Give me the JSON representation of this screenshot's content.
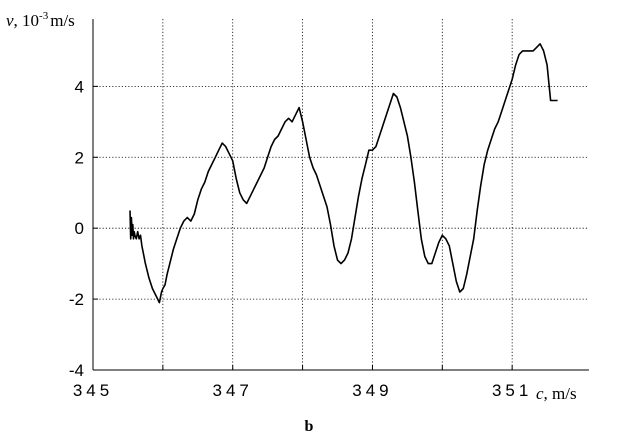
{
  "chart_data": {
    "type": "line",
    "xlabel": "c,  m/s",
    "ylabel": "v,  10-3 m/s",
    "ylabel_parts": {
      "symbol": "v",
      "sep": ", ",
      "base": "10",
      "exp": "-3",
      "unit": "m/s"
    },
    "xlabel_parts": {
      "symbol": "c",
      "unit": ", m/s"
    },
    "xlim": [
      345,
      352.1
    ],
    "ylim": [
      -4,
      5.9
    ],
    "x_ticks": [
      345,
      347,
      349,
      351
    ],
    "x_tick_labels": [
      "345",
      "347",
      "349",
      "351"
    ],
    "x_gridlines": [
      346,
      347,
      348,
      349,
      350,
      351
    ],
    "y_ticks": [
      -4,
      -2,
      0,
      2,
      4
    ],
    "y_tick_labels": [
      "-4",
      "-2",
      "0",
      "2",
      "4"
    ],
    "grid": "dotted",
    "color": "#000000",
    "series": [
      {
        "x": [
          345.53,
          345.54,
          345.55,
          345.56,
          345.57,
          345.58,
          345.59,
          345.6,
          345.62,
          345.64,
          345.66,
          345.68,
          345.7,
          345.75,
          345.8,
          345.85,
          345.9,
          345.95,
          345.98,
          346.0,
          346.03,
          346.06,
          346.1,
          346.15,
          346.2,
          346.25,
          346.3,
          346.35,
          346.4,
          346.45,
          346.5,
          346.55,
          346.6,
          346.65,
          346.7,
          346.75,
          346.8,
          346.85,
          346.9,
          346.95,
          347.0,
          347.05,
          347.1,
          347.15,
          347.2,
          347.25,
          347.3,
          347.35,
          347.4,
          347.45,
          347.5,
          347.55,
          347.6,
          347.65,
          347.7,
          347.75,
          347.8,
          347.85,
          347.9,
          347.95,
          348.0,
          348.05,
          348.1,
          348.15,
          348.2,
          348.25,
          348.3,
          348.35,
          348.4,
          348.45,
          348.5,
          348.55,
          348.6,
          348.65,
          348.7,
          348.75,
          348.8,
          348.85,
          348.9,
          348.95,
          349.0,
          349.05,
          349.1,
          349.15,
          349.2,
          349.25,
          349.3,
          349.35,
          349.4,
          349.45,
          349.5,
          349.55,
          349.6,
          349.65,
          349.7,
          349.75,
          349.8,
          349.85,
          349.9,
          349.95,
          350.0,
          350.05,
          350.1,
          350.15,
          350.2,
          350.25,
          350.3,
          350.35,
          350.4,
          350.45,
          350.5,
          350.55,
          350.6,
          350.65,
          350.7,
          350.75,
          350.8,
          350.85,
          350.9,
          350.95,
          351.0,
          351.05,
          351.1,
          351.15,
          351.2,
          351.25,
          351.3,
          351.35,
          351.4,
          351.45,
          351.5,
          351.55,
          351.6,
          351.65
        ],
        "y": [
          0.5,
          -0.3,
          0.3,
          -0.2,
          0.1,
          -0.3,
          -0.1,
          -0.2,
          -0.3,
          -0.1,
          -0.3,
          -0.2,
          -0.5,
          -1.0,
          -1.4,
          -1.7,
          -1.9,
          -2.1,
          -1.8,
          -1.7,
          -1.6,
          -1.3,
          -1.0,
          -0.6,
          -0.3,
          0.0,
          0.2,
          0.3,
          0.2,
          0.4,
          0.8,
          1.1,
          1.3,
          1.6,
          1.8,
          2.0,
          2.2,
          2.4,
          2.3,
          2.1,
          1.9,
          1.4,
          1.0,
          0.8,
          0.7,
          0.9,
          1.1,
          1.3,
          1.5,
          1.7,
          2.0,
          2.3,
          2.5,
          2.6,
          2.8,
          3.0,
          3.1,
          3.0,
          3.2,
          3.4,
          3.0,
          2.5,
          2.0,
          1.7,
          1.5,
          1.2,
          0.9,
          0.6,
          0.1,
          -0.5,
          -0.9,
          -1.0,
          -0.9,
          -0.7,
          -0.3,
          0.3,
          0.9,
          1.4,
          1.8,
          2.2,
          2.2,
          2.3,
          2.6,
          2.9,
          3.2,
          3.5,
          3.8,
          3.7,
          3.4,
          3.0,
          2.6,
          2.0,
          1.3,
          0.5,
          -0.3,
          -0.8,
          -1.0,
          -1.0,
          -0.7,
          -0.4,
          -0.2,
          -0.3,
          -0.5,
          -1.0,
          -1.5,
          -1.8,
          -1.7,
          -1.3,
          -0.8,
          -0.3,
          0.5,
          1.2,
          1.8,
          2.2,
          2.5,
          2.8,
          3.0,
          3.3,
          3.6,
          3.9,
          4.2,
          4.6,
          4.9,
          5.0,
          5.0,
          5.0,
          5.0,
          5.1,
          5.2,
          5.0,
          4.6,
          3.6,
          3.6,
          3.6
        ]
      }
    ],
    "panel_label": "b"
  }
}
